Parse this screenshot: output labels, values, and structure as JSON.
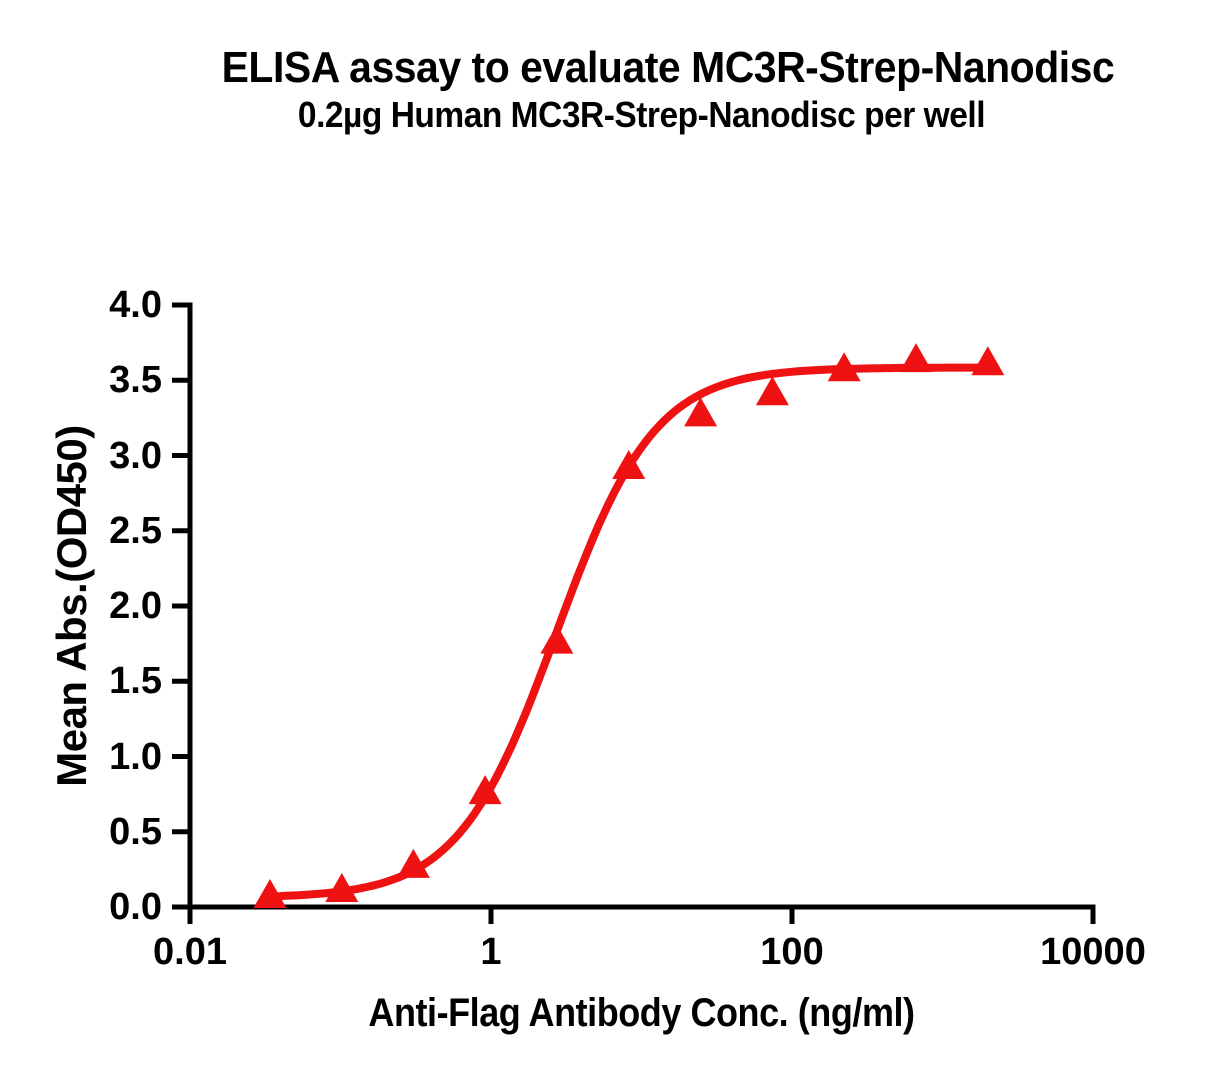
{
  "figure": {
    "title": "ELISA assay to evaluate MC3R-Strep-Nanodisc",
    "subtitle": "0.2µg Human MC3R-Strep-Nanodisc per well"
  },
  "chart_data": {
    "type": "scatter",
    "title": "ELISA assay to evaluate MC3R-Strep-Nanodisc",
    "subtitle": "0.2µg Human MC3R-Strep-Nanodisc per well",
    "xlabel": "Anti-Flag Antibody Conc. (ng/ml)",
    "ylabel": "Mean Abs.(OD450)",
    "x_scale": "log10",
    "xlim": [
      0.01,
      10000
    ],
    "ylim": [
      0,
      4
    ],
    "grid": false,
    "legend": "none",
    "marker": "triangle-up",
    "x_ticks": [
      {
        "value": 0.01,
        "label": "0.01"
      },
      {
        "value": 1,
        "label": "1"
      },
      {
        "value": 100,
        "label": "100"
      },
      {
        "value": 10000,
        "label": "10000"
      }
    ],
    "y_ticks": [
      {
        "value": 0.0,
        "label": "0.0"
      },
      {
        "value": 0.5,
        "label": "0.5"
      },
      {
        "value": 1.0,
        "label": "1.0"
      },
      {
        "value": 1.5,
        "label": "1.5"
      },
      {
        "value": 2.0,
        "label": "2.0"
      },
      {
        "value": 2.5,
        "label": "2.5"
      },
      {
        "value": 3.0,
        "label": "3.0"
      },
      {
        "value": 3.5,
        "label": "3.5"
      },
      {
        "value": 4.0,
        "label": "4.0"
      }
    ],
    "x": [
      0.034,
      0.102,
      0.305,
      0.914,
      2.74,
      8.23,
      24.7,
      74.1,
      222,
      667,
      2000
    ],
    "y": [
      0.08,
      0.12,
      0.28,
      0.77,
      1.77,
      2.93,
      3.28,
      3.42,
      3.58,
      3.64,
      3.62
    ],
    "fit_4pl": {
      "bottom": 0.06,
      "top": 3.585,
      "ec50": 2.72,
      "hill": 1.33
    },
    "colors": {
      "curve": "#EE1212",
      "marker": "#EE1212",
      "axis": "#000000",
      "text": "#000000"
    }
  }
}
